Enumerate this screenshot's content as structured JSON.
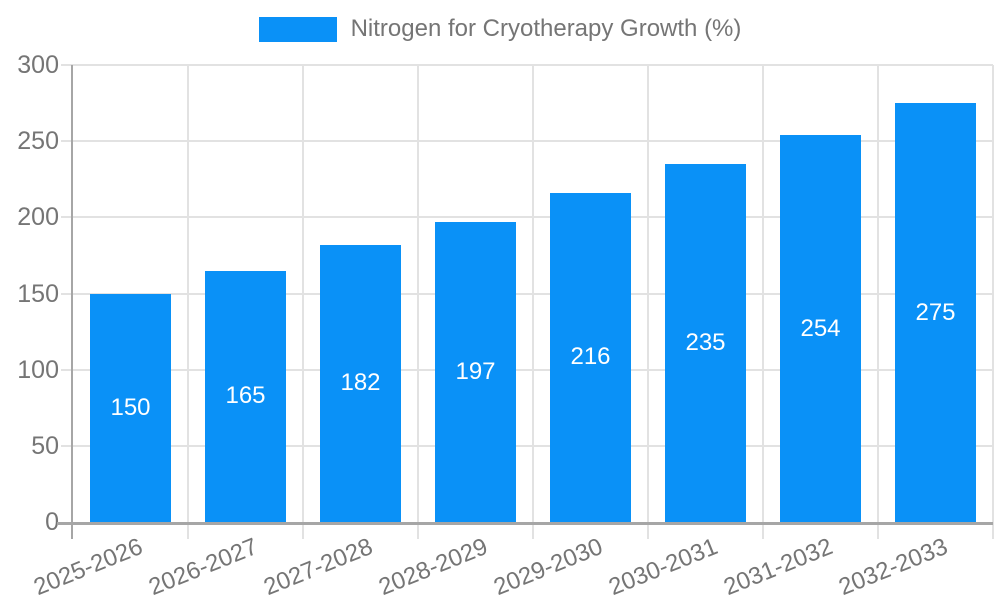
{
  "chart_data": {
    "type": "bar",
    "title": "",
    "legend": "Nitrogen for Cryotherapy Growth (%)",
    "legend_position": "top-center",
    "categories": [
      "2025-2026",
      "2026-2027",
      "2027-2028",
      "2028-2029",
      "2029-2030",
      "2030-2031",
      "2031-2032",
      "2032-2033"
    ],
    "values": [
      150,
      165,
      182,
      197,
      216,
      235,
      254,
      275
    ],
    "xlabel": "",
    "ylabel": "",
    "ylim": [
      0,
      300
    ],
    "yticks": [
      0,
      50,
      100,
      150,
      200,
      250,
      300
    ],
    "grid": true,
    "value_labels": "inside-center",
    "x_tick_rotation_deg": -22,
    "colors": {
      "bar": "#0A91F7",
      "grid": "#E2E2E2",
      "axis": "#A6A6A6",
      "tick_text": "#757575",
      "value_text": "#FFFFFF",
      "background": "#FFFFFF"
    }
  }
}
